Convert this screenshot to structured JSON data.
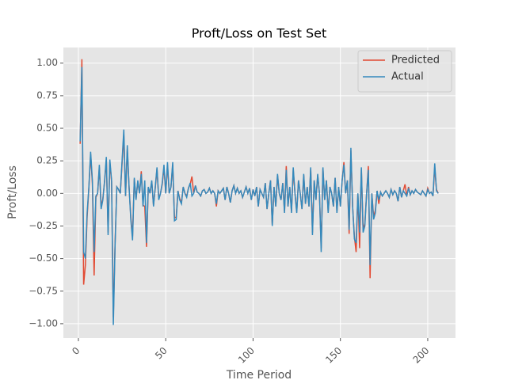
{
  "chart_data": {
    "type": "line",
    "title": "Proft/Loss on Test Set",
    "x_label": "Time Period",
    "y_label": "Proft/Loss",
    "x": [
      1,
      2,
      3,
      4,
      5,
      6,
      7,
      8,
      9,
      10,
      11,
      12,
      13,
      14,
      15,
      16,
      17,
      18,
      19,
      20,
      21,
      22,
      23,
      24,
      25,
      26,
      27,
      28,
      29,
      30,
      31,
      32,
      33,
      34,
      35,
      36,
      37,
      38,
      39,
      40,
      41,
      42,
      43,
      44,
      45,
      46,
      47,
      48,
      49,
      50,
      51,
      52,
      53,
      54,
      55,
      56,
      57,
      58,
      59,
      60,
      61,
      62,
      63,
      64,
      65,
      66,
      67,
      68,
      69,
      70,
      71,
      72,
      73,
      74,
      75,
      76,
      77,
      78,
      79,
      80,
      81,
      82,
      83,
      84,
      85,
      86,
      87,
      88,
      89,
      90,
      91,
      92,
      93,
      94,
      95,
      96,
      97,
      98,
      99,
      100,
      101,
      102,
      103,
      104,
      105,
      106,
      107,
      108,
      109,
      110,
      111,
      112,
      113,
      114,
      115,
      116,
      117,
      118,
      119,
      120,
      121,
      122,
      123,
      124,
      125,
      126,
      127,
      128,
      129,
      130,
      131,
      132,
      133,
      134,
      135,
      136,
      137,
      138,
      139,
      140,
      141,
      142,
      143,
      144,
      145,
      146,
      147,
      148,
      149,
      150,
      151,
      152,
      153,
      154,
      155,
      156,
      157,
      158,
      159,
      160,
      161,
      162,
      163,
      164,
      165,
      166,
      167,
      168,
      169,
      170,
      171,
      172,
      173,
      174,
      175,
      176,
      177,
      178,
      179,
      180,
      181,
      182,
      183,
      184,
      185,
      186,
      187,
      188,
      189,
      190,
      191,
      192,
      193,
      194,
      195,
      196,
      197,
      198,
      199,
      200,
      201,
      202,
      203,
      204,
      205,
      206
    ],
    "series": [
      {
        "name": "Predicted",
        "color": "#E24A33",
        "values": [
          0.38,
          1.03,
          -0.7,
          -0.55,
          -0.18,
          0.04,
          0.3,
          0.08,
          -0.63,
          -0.03,
          0.0,
          0.2,
          -0.1,
          -0.04,
          0.09,
          0.26,
          -0.3,
          0.24,
          0.09,
          -0.95,
          -0.38,
          0.05,
          0.03,
          0.0,
          0.23,
          0.45,
          -0.02,
          0.34,
          0.05,
          -0.18,
          -0.33,
          0.11,
          -0.04,
          0.09,
          0.0,
          0.17,
          -0.09,
          -0.1,
          -0.41,
          0.04,
          0.0,
          0.09,
          -0.09,
          0.04,
          0.19,
          -0.04,
          0.0,
          0.07,
          0.2,
          0.0,
          0.22,
          0.0,
          0.05,
          0.22,
          -0.19,
          -0.18,
          0.02,
          -0.04,
          -0.07,
          0.05,
          0.0,
          -0.02,
          0.04,
          0.07,
          0.13,
          0.0,
          0.06,
          0.01,
          0.0,
          -0.02,
          0.02,
          0.03,
          0.0,
          0.01,
          0.04,
          0.0,
          0.02,
          0.0,
          -0.1,
          0.02,
          0.0,
          0.02,
          0.04,
          -0.05,
          0.05,
          0.0,
          -0.07,
          0.02,
          0.06,
          0.0,
          0.04,
          0.0,
          0.02,
          -0.03,
          0.01,
          0.05,
          0.0,
          0.04,
          -0.05,
          0.03,
          -0.02,
          0.05,
          -0.1,
          0.03,
          0.0,
          -0.03,
          0.08,
          -0.12,
          0.0,
          0.1,
          -0.24,
          0.05,
          -0.1,
          0.14,
          0.0,
          -0.05,
          0.08,
          -0.14,
          0.21,
          -0.1,
          0.05,
          -0.14,
          0.18,
          0.0,
          -0.14,
          0.1,
          0.0,
          -0.12,
          0.14,
          -0.08,
          0.05,
          -0.1,
          0.19,
          -0.3,
          0.1,
          -0.05,
          0.14,
          0.0,
          -0.42,
          0.19,
          -0.05,
          0.1,
          -0.14,
          0.05,
          0.0,
          -0.1,
          0.12,
          -0.14,
          0.05,
          -0.1,
          0.1,
          0.24,
          0.0,
          0.1,
          -0.31,
          0.33,
          -0.1,
          -0.33,
          -0.45,
          0.0,
          -0.42,
          0.18,
          -0.28,
          -0.23,
          0.0,
          0.21,
          -0.65,
          0.0,
          -0.18,
          -0.13,
          0.02,
          -0.08,
          0.01,
          -0.02,
          0.0,
          0.02,
          0.0,
          -0.03,
          0.03,
          -0.01,
          0.02,
          0.0,
          -0.06,
          0.05,
          -0.03,
          0.02,
          0.07,
          -0.02,
          0.05,
          -0.01,
          0.02,
          0.0,
          0.03,
          0.01,
          0.0,
          -0.01,
          0.02,
          0.0,
          -0.02,
          0.04,
          0.0,
          0.01,
          -0.02,
          0.2,
          0.03,
          0.0
        ]
      },
      {
        "name": "Actual",
        "color": "#348ABD",
        "values": [
          0.4,
          0.97,
          -0.45,
          -0.5,
          -0.15,
          0.05,
          0.32,
          0.1,
          -0.45,
          -0.02,
          0.0,
          0.22,
          -0.12,
          -0.05,
          0.1,
          0.28,
          -0.32,
          0.26,
          0.1,
          -1.01,
          -0.4,
          0.05,
          0.03,
          0.0,
          0.25,
          0.49,
          -0.02,
          0.37,
          0.05,
          -0.2,
          -0.36,
          0.12,
          -0.05,
          0.1,
          0.0,
          0.15,
          -0.1,
          0.1,
          -0.38,
          0.05,
          0.0,
          0.1,
          -0.1,
          0.05,
          0.2,
          -0.05,
          0.0,
          0.08,
          0.22,
          0.0,
          0.24,
          0.0,
          0.05,
          0.24,
          -0.21,
          -0.2,
          0.02,
          -0.05,
          -0.08,
          0.05,
          0.0,
          -0.03,
          0.04,
          0.08,
          -0.02,
          0.0,
          0.06,
          0.01,
          0.0,
          -0.02,
          0.02,
          0.03,
          0.0,
          0.01,
          0.04,
          0.0,
          0.02,
          0.0,
          -0.08,
          0.02,
          0.0,
          0.02,
          0.04,
          -0.05,
          0.05,
          0.0,
          -0.07,
          0.02,
          0.06,
          0.0,
          0.04,
          0.0,
          0.02,
          -0.03,
          0.01,
          0.05,
          0.0,
          0.04,
          -0.05,
          0.03,
          -0.02,
          0.05,
          -0.1,
          0.03,
          0.0,
          -0.03,
          0.08,
          -0.12,
          0.0,
          0.1,
          -0.25,
          0.05,
          -0.1,
          0.15,
          0.0,
          -0.05,
          0.08,
          -0.15,
          0.18,
          -0.1,
          0.05,
          -0.15,
          0.2,
          0.0,
          -0.15,
          0.1,
          0.0,
          -0.12,
          0.15,
          -0.08,
          0.05,
          -0.1,
          0.2,
          -0.32,
          0.1,
          -0.05,
          0.15,
          0.0,
          -0.45,
          0.2,
          -0.05,
          0.1,
          -0.15,
          0.05,
          0.0,
          -0.1,
          0.12,
          -0.15,
          0.05,
          -0.1,
          0.1,
          0.22,
          0.0,
          0.1,
          -0.28,
          0.35,
          -0.1,
          -0.35,
          -0.38,
          0.0,
          -0.3,
          0.2,
          -0.3,
          -0.25,
          0.0,
          0.18,
          -0.55,
          0.0,
          -0.2,
          -0.15,
          0.02,
          -0.05,
          0.01,
          -0.02,
          0.0,
          0.02,
          0.0,
          -0.03,
          0.03,
          -0.01,
          0.02,
          0.0,
          -0.06,
          0.05,
          -0.03,
          0.02,
          0.0,
          -0.02,
          0.04,
          -0.01,
          0.02,
          0.0,
          0.03,
          0.01,
          0.0,
          -0.01,
          0.02,
          0.0,
          -0.02,
          0.03,
          0.0,
          0.01,
          -0.02,
          0.23,
          0.02,
          0.0
        ]
      }
    ],
    "xlim": [
      -8.6,
      215.9
    ],
    "xticks": [
      0,
      50,
      100,
      150,
      200
    ],
    "ylim": [
      -1.11,
      1.12
    ],
    "yticks": [
      {
        "value": -1,
        "label": "−1.00"
      },
      {
        "value": -0.75,
        "label": "−0.75"
      },
      {
        "value": -0.5,
        "label": "−0.50"
      },
      {
        "value": -0.25,
        "label": "−0.25"
      },
      {
        "value": 0,
        "label": "0.00"
      },
      {
        "value": 0.25,
        "label": "0.25"
      },
      {
        "value": 0.5,
        "label": "0.50"
      },
      {
        "value": 0.75,
        "label": "0.75"
      },
      {
        "value": 1,
        "label": "1.00"
      }
    ],
    "grid": true,
    "legend": "upper right"
  }
}
